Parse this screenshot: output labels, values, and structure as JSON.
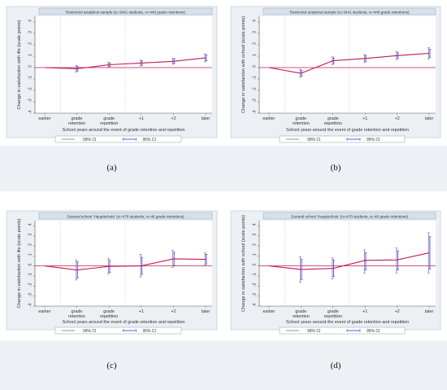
{
  "chart_data": [
    {
      "type": "line",
      "panel_label": "(a)",
      "title": "Restricted analytical sample (nᵢ=3441 students, nᵢ=446 grade retentions)",
      "ylabel": "Change in satisfaction with life (scale points)",
      "xlabel": "School years around the event of grade retention and repetition",
      "categories": [
        [
          "earlier"
        ],
        [
          "grade",
          "retention"
        ],
        [
          "grade",
          "repetition"
        ],
        [
          "+1"
        ],
        [
          "+2"
        ],
        [
          "later"
        ]
      ],
      "yticks": [
        "4",
        "3",
        "2",
        "1",
        "0",
        "-1",
        "-2",
        "-3",
        "-4"
      ],
      "ylim": [
        -4,
        4.5
      ],
      "values": [
        0,
        -0.1,
        0.25,
        0.4,
        0.55,
        0.85
      ],
      "ci99": [
        [
          0,
          0
        ],
        [
          -0.4,
          0.2
        ],
        [
          0.05,
          0.45
        ],
        [
          0.15,
          0.65
        ],
        [
          0.3,
          0.8
        ],
        [
          0.5,
          1.2
        ]
      ],
      "ci95": [
        [
          0,
          0
        ],
        [
          -0.3,
          0.1
        ],
        [
          0.1,
          0.4
        ],
        [
          0.2,
          0.6
        ],
        [
          0.35,
          0.75
        ],
        [
          0.6,
          1.1
        ]
      ],
      "legend": [
        "99% CI",
        "95% CI"
      ]
    },
    {
      "type": "line",
      "panel_label": "(b)",
      "title": "Restricted analytical sample (nᵢ=3441 students, nᵢ=446 grade retentions)",
      "ylabel": "Change in satisfaction with school (scale points)",
      "xlabel": "School years around the event of grade retention and repetition",
      "categories": [
        [
          "earlier"
        ],
        [
          "grade",
          "retention"
        ],
        [
          "grade",
          "repetition"
        ],
        [
          "+1"
        ],
        [
          "+2"
        ],
        [
          "later"
        ]
      ],
      "yticks": [
        "4",
        "3",
        "2",
        "1",
        "0",
        "-1",
        "-2",
        "-3",
        "-4"
      ],
      "ylim": [
        -4,
        4.5
      ],
      "values": [
        0,
        -0.5,
        0.6,
        0.8,
        1.05,
        1.25
      ],
      "ci99": [
        [
          0,
          0
        ],
        [
          -0.85,
          -0.15
        ],
        [
          0.25,
          0.95
        ],
        [
          0.45,
          1.15
        ],
        [
          0.7,
          1.4
        ],
        [
          0.75,
          1.75
        ]
      ],
      "ci95": [
        [
          0,
          0
        ],
        [
          -0.75,
          -0.25
        ],
        [
          0.35,
          0.85
        ],
        [
          0.55,
          1.05
        ],
        [
          0.8,
          1.3
        ],
        [
          0.9,
          1.6
        ]
      ],
      "legend": [
        "99% CI",
        "95% CI"
      ]
    },
    {
      "type": "line",
      "panel_label": "(c)",
      "title": "General school 'Hauptschule' (nᵢ=470 students, nᵢ=46 grade retentions)",
      "ylabel": "Change in satisfaction with life (scale points)",
      "xlabel": "School years around the event of grade retention and repetition",
      "categories": [
        [
          "earlier"
        ],
        [
          "grade",
          "retention"
        ],
        [
          "grade",
          "repetition"
        ],
        [
          "+1"
        ],
        [
          "+2"
        ],
        [
          "later"
        ]
      ],
      "yticks": [
        "4",
        "3",
        "2",
        "1",
        "0",
        "-1",
        "-2",
        "-3",
        "-4"
      ],
      "ylim": [
        -4,
        4.5
      ],
      "values": [
        0,
        -0.4,
        -0.05,
        0,
        0.7,
        0.65
      ],
      "ci99": [
        [
          0,
          0
        ],
        [
          -1.4,
          0.6
        ],
        [
          -0.8,
          0.75
        ],
        [
          -1.1,
          1.15
        ],
        [
          -0.15,
          1.55
        ],
        [
          0.1,
          1.3
        ]
      ],
      "ci95": [
        [
          0,
          0
        ],
        [
          -1.2,
          0.4
        ],
        [
          -0.65,
          0.55
        ],
        [
          -0.85,
          0.85
        ],
        [
          0.05,
          1.35
        ],
        [
          0.2,
          1.15
        ]
      ],
      "legend": [
        "99% CI",
        "95% CI"
      ]
    },
    {
      "type": "line",
      "panel_label": "(d)",
      "title": "General school 'Hauptschule' (nᵢ=470 students, nᵢ=46 grade retentions)",
      "ylabel": "Change in satisfaction with school (scale points)",
      "xlabel": "School years around the event of grade retention and repetition",
      "categories": [
        [
          "earlier"
        ],
        [
          "grade",
          "retention"
        ],
        [
          "grade",
          "repetition"
        ],
        [
          "+1"
        ],
        [
          "+2"
        ],
        [
          "later"
        ]
      ],
      "yticks": [
        "4",
        "3",
        "2",
        "1",
        "0",
        "-1",
        "-2",
        "-3",
        "-4"
      ],
      "ylim": [
        -4,
        4.5
      ],
      "values": [
        0,
        -0.35,
        -0.25,
        0.55,
        0.6,
        1.3
      ],
      "ci99": [
        [
          0,
          0
        ],
        [
          -1.6,
          0.9
        ],
        [
          -1.3,
          0.8
        ],
        [
          -0.7,
          1.6
        ],
        [
          -0.7,
          1.8
        ],
        [
          -0.7,
          3.3
        ]
      ],
      "ci95": [
        [
          0,
          0
        ],
        [
          -1.35,
          0.65
        ],
        [
          -1.05,
          0.6
        ],
        [
          -0.4,
          1.3
        ],
        [
          -0.4,
          1.5
        ],
        [
          -0.3,
          2.9
        ]
      ],
      "legend": [
        "99% CI",
        "95% CI"
      ]
    }
  ],
  "colors": {
    "line": "#c2185b",
    "ci99": "#8a8a8a",
    "ci95": "#4a4af0",
    "frame_bg": "#ecf0f4",
    "title_bg": "#d6e0ea",
    "bottom_band": "#edf0f4"
  }
}
